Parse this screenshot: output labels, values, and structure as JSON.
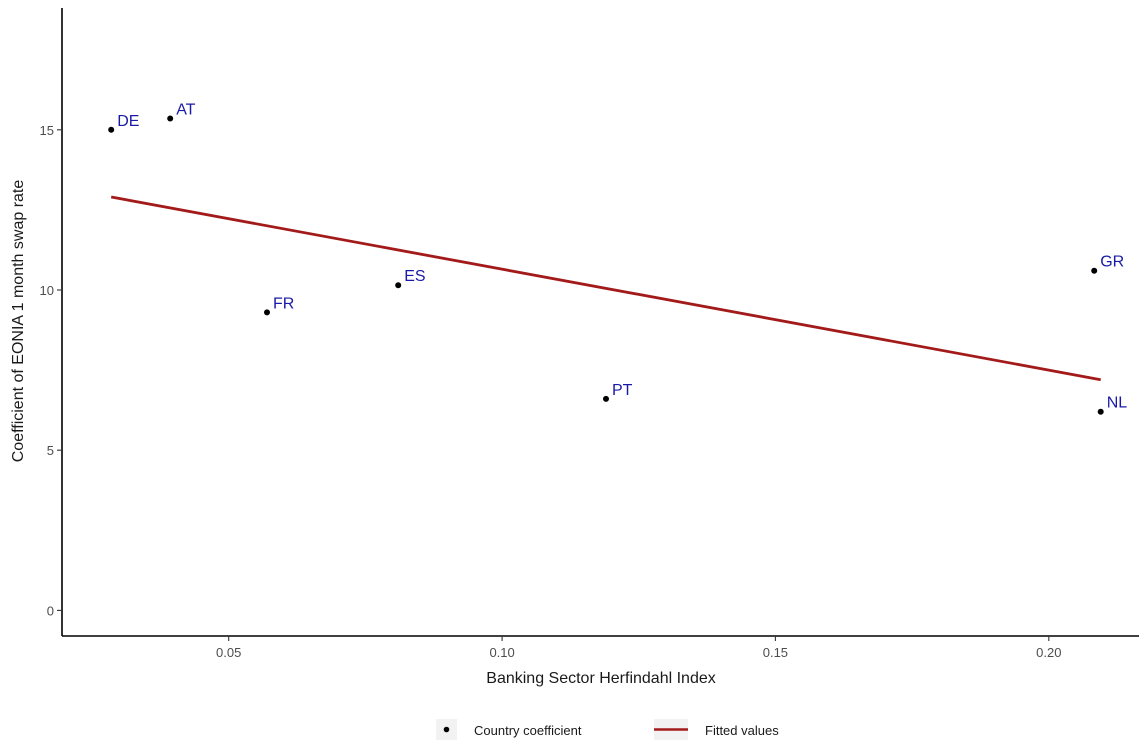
{
  "chart_data": {
    "type": "scatter",
    "title": "",
    "xlabel": "Banking Sector Herfindahl Index",
    "ylabel": "Coefficient of EONIA 1 month swap rate",
    "xlim": [
      0.0195,
      0.2165
    ],
    "ylim": [
      -0.8,
      18.8
    ],
    "x_ticks": [
      {
        "value": 0.05,
        "label": "0.05"
      },
      {
        "value": 0.1,
        "label": "0.10"
      },
      {
        "value": 0.15,
        "label": "0.15"
      },
      {
        "value": 0.2,
        "label": "0.20"
      }
    ],
    "y_ticks": [
      {
        "value": 0,
        "label": "0"
      },
      {
        "value": 5,
        "label": "5"
      },
      {
        "value": 10,
        "label": "10"
      },
      {
        "value": 15,
        "label": "15"
      }
    ],
    "grid": false,
    "legend_position": "bottom",
    "series": [
      {
        "name": "Country coefficient",
        "kind": "points",
        "color": "#000000",
        "label_color": "#1a1aa6",
        "points": [
          {
            "label": "DE",
            "x": 0.0285,
            "y": 15.0
          },
          {
            "label": "AT",
            "x": 0.0393,
            "y": 15.35
          },
          {
            "label": "FR",
            "x": 0.057,
            "y": 9.3
          },
          {
            "label": "ES",
            "x": 0.081,
            "y": 10.15
          },
          {
            "label": "PT",
            "x": 0.119,
            "y": 6.6
          },
          {
            "label": "GR",
            "x": 0.2083,
            "y": 10.6
          },
          {
            "label": "NL",
            "x": 0.2095,
            "y": 6.2
          }
        ]
      },
      {
        "name": "Fitted values",
        "kind": "line",
        "color": "#a31a1a",
        "x": [
          0.0285,
          0.2095
        ],
        "y": [
          12.9,
          7.2
        ]
      }
    ]
  }
}
